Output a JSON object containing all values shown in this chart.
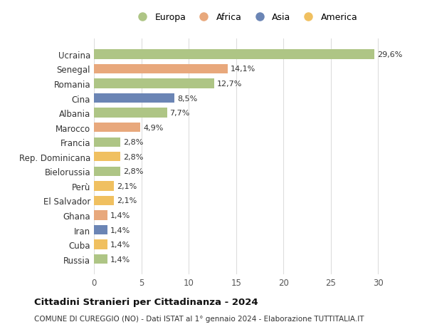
{
  "categories": [
    "Ucraina",
    "Senegal",
    "Romania",
    "Cina",
    "Albania",
    "Marocco",
    "Francia",
    "Rep. Dominicana",
    "Bielorussia",
    "Perù",
    "El Salvador",
    "Ghana",
    "Iran",
    "Cuba",
    "Russia"
  ],
  "values": [
    29.6,
    14.1,
    12.7,
    8.5,
    7.7,
    4.9,
    2.8,
    2.8,
    2.8,
    2.1,
    2.1,
    1.4,
    1.4,
    1.4,
    1.4
  ],
  "labels": [
    "29,6%",
    "14,1%",
    "12,7%",
    "8,5%",
    "7,7%",
    "4,9%",
    "2,8%",
    "2,8%",
    "2,8%",
    "2,1%",
    "2,1%",
    "1,4%",
    "1,4%",
    "1,4%",
    "1,4%"
  ],
  "colors": [
    "#aec585",
    "#e8a87c",
    "#aec585",
    "#6b85b5",
    "#aec585",
    "#e8a87c",
    "#aec585",
    "#f0c060",
    "#aec585",
    "#f0c060",
    "#f0c060",
    "#e8a87c",
    "#6b85b5",
    "#f0c060",
    "#aec585"
  ],
  "legend_labels": [
    "Europa",
    "Africa",
    "Asia",
    "America"
  ],
  "legend_colors": [
    "#aec585",
    "#e8a87c",
    "#6b85b5",
    "#f0c060"
  ],
  "title": "Cittadini Stranieri per Cittadinanza - 2024",
  "subtitle": "COMUNE DI CUREGGIO (NO) - Dati ISTAT al 1° gennaio 2024 - Elaborazione TUTTITALIA.IT",
  "xlim": [
    0,
    32
  ],
  "xticks": [
    0,
    5,
    10,
    15,
    20,
    25,
    30
  ],
  "background_color": "#ffffff",
  "grid_color": "#dddddd"
}
